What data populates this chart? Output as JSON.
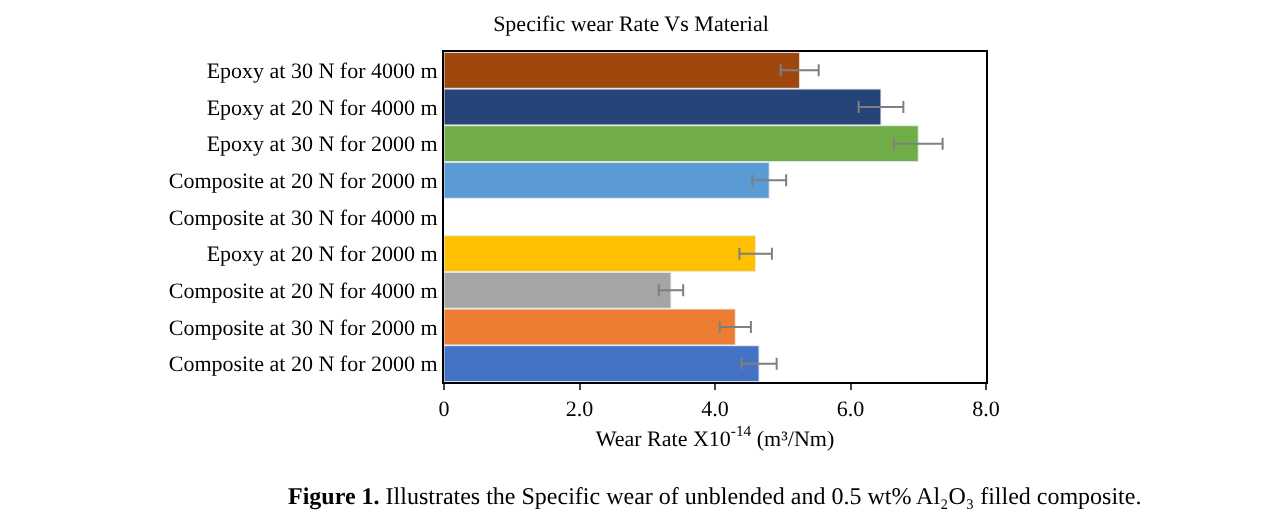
{
  "chart_data": {
    "type": "bar",
    "orientation": "horizontal",
    "title": "Specific wear Rate Vs Material",
    "xlabel": "Wear Rate X10$^{-14}$ (m³/Nm)",
    "categories": [
      "Epoxy at 30 N for 4000 m",
      "Epoxy at 20 N for 4000 m",
      "Epoxy at 30 N for 2000 m",
      "Composite at 20 N for 2000 m",
      "Composite at 30 N for 4000 m",
      "Epoxy at 20 N for 2000 m",
      "Composite at 20 N for 4000 m",
      "Composite at 30 N for 2000 m",
      "Composite at 20 N for 2000 m"
    ],
    "values": [
      5.25,
      6.45,
      7.0,
      4.8,
      null,
      4.6,
      3.35,
      4.3,
      4.65
    ],
    "errors": [
      0.28,
      0.33,
      0.36,
      0.25,
      null,
      0.24,
      0.18,
      0.23,
      0.26
    ],
    "colors": [
      "#9e480e",
      "#264478",
      "#70ad47",
      "#5b9bd5",
      "#ffc000",
      "#ffc000",
      "#a5a5a5",
      "#ed7d31",
      "#4472c4"
    ],
    "xlim": [
      0,
      8
    ],
    "xticks": [
      0,
      {
        "value": 2,
        "label": "2.0"
      },
      {
        "value": 4,
        "label": "4.0"
      },
      {
        "value": 6,
        "label": "6.0"
      },
      {
        "value": 8,
        "label": "8.0"
      }
    ],
    "legend": false,
    "annotations": [
      "**Figure 1.** Illustrates the Specific wear of unblended and 0.5 wt% Al₂O₃ filled composite."
    ]
  }
}
